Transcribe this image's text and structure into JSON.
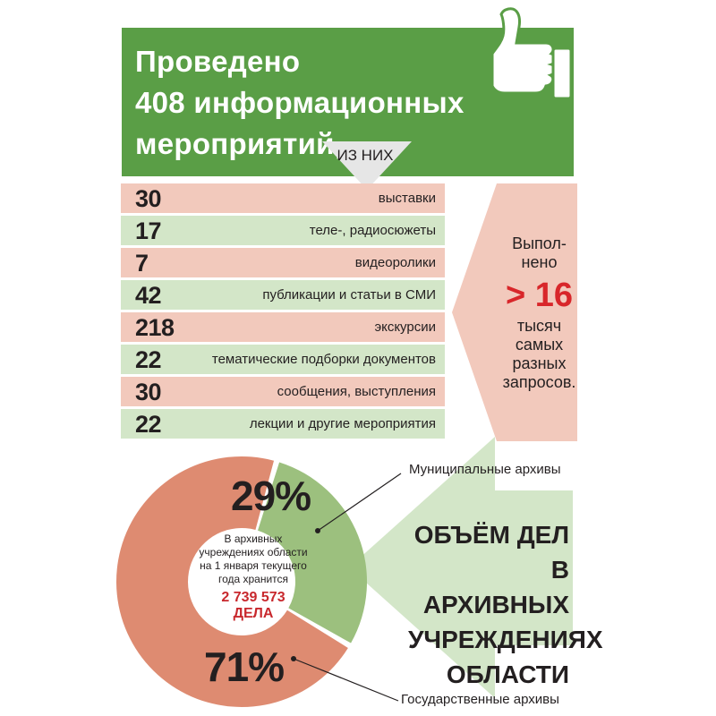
{
  "header": {
    "line1": "Проведено",
    "line2": "408 информационных",
    "line3": "мероприятий,",
    "arrow_label": "ИЗ НИХ"
  },
  "stats": [
    {
      "value": "30",
      "label": "выставки"
    },
    {
      "value": "17",
      "label": "теле-, радиосюжеты"
    },
    {
      "value": "7",
      "label": "видеоролики"
    },
    {
      "value": "42",
      "label": "публикации и статьи в СМИ"
    },
    {
      "value": "218",
      "label": "экскурсии"
    },
    {
      "value": "22",
      "label": "тематические подборки документов"
    },
    {
      "value": "30",
      "label": "сообщения, выступления"
    },
    {
      "value": "22",
      "label": "лекции и другие мероприятия"
    }
  ],
  "side": {
    "line1": "Выпол-",
    "line2": "нено",
    "value": "> 16",
    "line3": "тысяч",
    "line4": "самых",
    "line5": "разных",
    "line6": "запросов."
  },
  "donut": {
    "center_text": "В архивных учреждениях области на 1 января текущего года хранится",
    "center_value": "2 739 573",
    "center_unit": "ДЕЛА",
    "title": "ОБЪЁМ ДЕЛ В АРХИВНЫХ УЧРЕЖДЕНИЯХ ОБЛАСТИ"
  },
  "colors": {
    "header_green": "#5a9e46",
    "row_pink": "#f2c9bc",
    "row_green": "#d3e6c8",
    "slice_municipal": "#9cc07e",
    "slice_state": "#de8b71",
    "accent_red": "#d8262a"
  },
  "icons": {
    "header": "thumbs-up-icon"
  },
  "chart_data": [
    {
      "type": "table",
      "title": "Проведено 408 информационных мероприятий, из них",
      "categories": [
        "выставки",
        "теле-, радиосюжеты",
        "видеоролики",
        "публикации и статьи в СМИ",
        "экскурсии",
        "тематические подборки документов",
        "сообщения, выступления",
        "лекции и другие мероприятия"
      ],
      "values": [
        30,
        17,
        7,
        42,
        218,
        22,
        30,
        22
      ]
    },
    {
      "type": "pie",
      "title": "ОБЪЁМ ДЕЛ В АРХИВНЫХ УЧРЕЖДЕНИЯХ ОБЛАСТИ",
      "series": [
        {
          "name": "Муниципальные архивы",
          "value": 29,
          "label": "29%",
          "color": "#9cc07e"
        },
        {
          "name": "Государственные архивы",
          "value": 71,
          "label": "71%",
          "color": "#de8b71"
        }
      ]
    }
  ]
}
